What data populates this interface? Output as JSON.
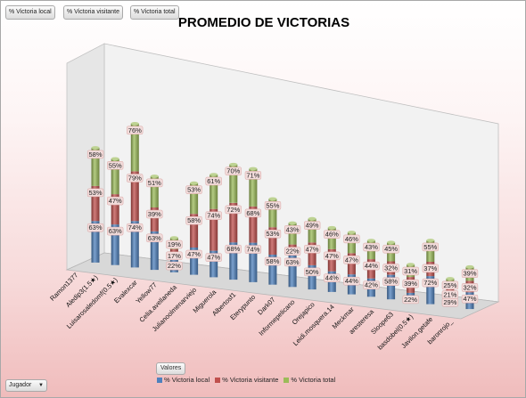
{
  "field_buttons": {
    "local": "% Victoria local",
    "visitante": "% Victoria visitante",
    "total": "% Victoria total"
  },
  "values_button": "Valores",
  "filter": {
    "label": "Jugador",
    "arrow_icon": "dropdown-arrow-icon"
  },
  "colors": {
    "local": "#4f81bd",
    "visitante": "#c0504d",
    "total": "#9bbb59"
  },
  "chart_data": {
    "type": "bar",
    "stacked": true,
    "three_d": true,
    "title": "PROMEDIO DE VICTORIAS",
    "categories": [
      "Ramon1377",
      "Aledip3(1.5★)",
      "Luisarosaledomf(0.5★)",
      "Evalexcar",
      "Yellow77",
      "Celia.avellaneda",
      "Julianoolmenarviejo",
      "Miguerola",
      "Albertosf1",
      "Eterypunto",
      "Dark07",
      "Informepelicano",
      "Orejapico",
      "Leidi.mosquera.14",
      "Meckmar",
      "aresteresa",
      "Sloope63",
      "basdobel(0.5★)",
      "Javilon.getafe",
      "baronrojo_"
    ],
    "series": [
      {
        "name": "% Victoria local",
        "values": [
          63,
          63,
          74,
          63,
          22,
          47,
          47,
          68,
          74,
          58,
          63,
          50,
          44,
          44,
          42,
          58,
          22,
          72,
          29,
          47
        ]
      },
      {
        "name": "% Victoria visitante",
        "values": [
          53,
          47,
          79,
          39,
          17,
          58,
          74,
          72,
          68,
          53,
          22,
          47,
          47,
          47,
          44,
          32,
          39,
          37,
          21,
          32
        ]
      },
      {
        "name": "% Victoria total",
        "values": [
          58,
          55,
          76,
          51,
          19,
          53,
          61,
          70,
          71,
          55,
          43,
          49,
          46,
          46,
          43,
          45,
          31,
          55,
          25,
          39
        ]
      }
    ],
    "value_format": "percent",
    "legend_position": "bottom"
  }
}
